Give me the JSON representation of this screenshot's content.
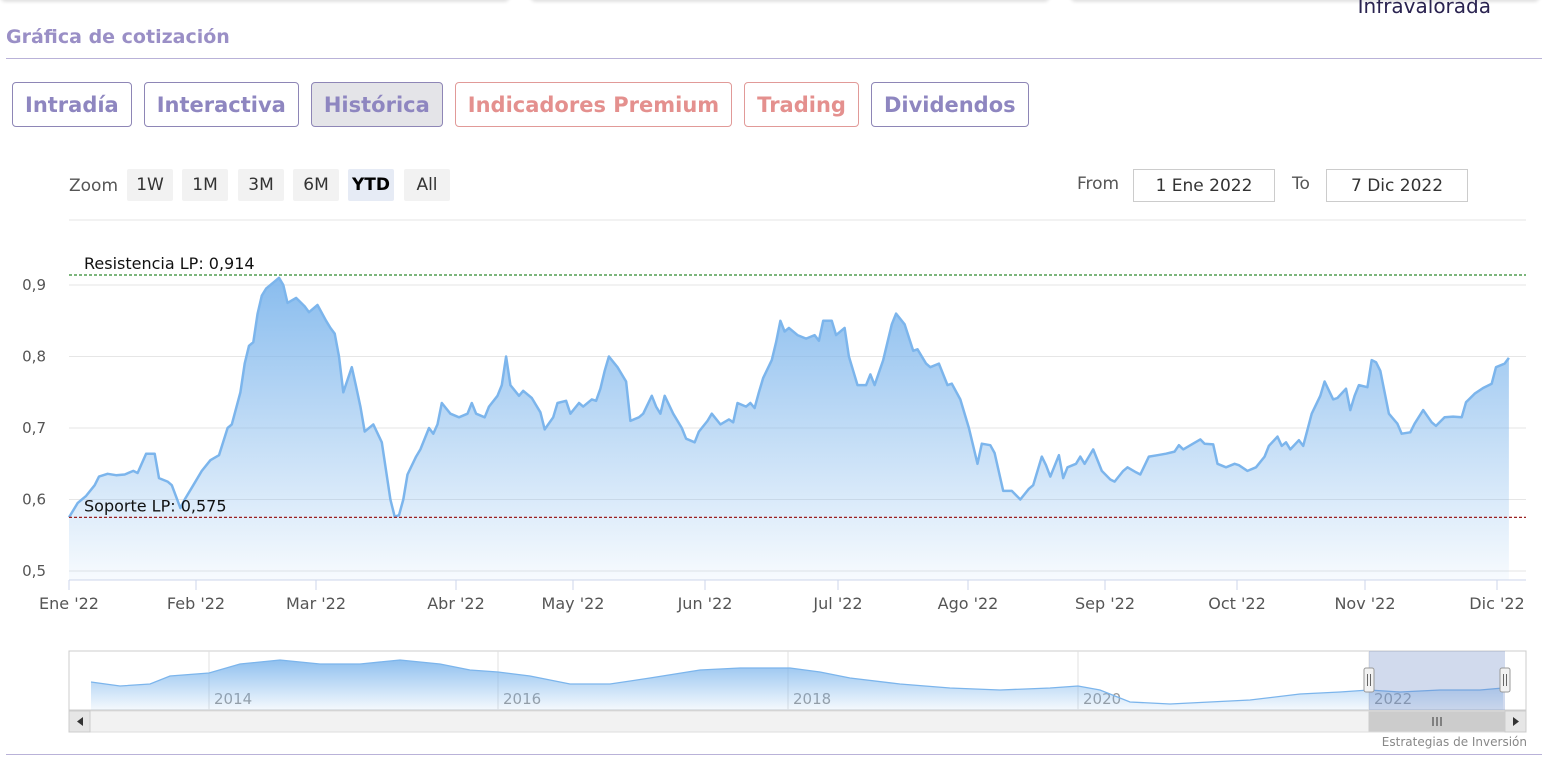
{
  "header": {
    "right_label": "Infravalorada",
    "section_title": "Gráfica de cotización"
  },
  "tabs": [
    {
      "label": "Intradía",
      "active": false,
      "premium": false
    },
    {
      "label": "Interactiva",
      "active": false,
      "premium": false
    },
    {
      "label": "Histórica",
      "active": true,
      "premium": false
    },
    {
      "label": "Indicadores Premium",
      "active": false,
      "premium": true
    },
    {
      "label": "Trading",
      "active": false,
      "premium": true
    },
    {
      "label": "Dividendos",
      "active": false,
      "premium": false
    }
  ],
  "zoom": {
    "label": "Zoom",
    "buttons": [
      "1W",
      "1M",
      "3M",
      "6M",
      "YTD",
      "All"
    ],
    "selected": "YTD"
  },
  "range": {
    "from_label": "From",
    "from_value": "1 Ene 2022",
    "to_label": "To",
    "to_value": "7 Dic 2022"
  },
  "credit": "Estrategias de Inversión",
  "chart_data": {
    "type": "area",
    "title": "",
    "xlabel": "",
    "ylabel": "",
    "x_ticks": [
      "Ene '22",
      "Feb '22",
      "Mar '22",
      "Abr '22",
      "May '22",
      "Jun '22",
      "Jul '22",
      "Ago '22",
      "Sep '22",
      "Oct '22",
      "Nov '22",
      "Dic '22"
    ],
    "y_ticks": [
      "0,5",
      "0,6",
      "0,7",
      "0,8",
      "0,9"
    ],
    "ylim": [
      0.488,
      0.99
    ],
    "xlim": [
      0,
      340
    ],
    "x_unit": "days since 1 Ene 2022",
    "grid": true,
    "color": "#7cb5ec",
    "resistance": {
      "label": "Resistencia LP: 0,914",
      "value": 0.914,
      "color": "#2e8b2e"
    },
    "support": {
      "label": "Soporte LP: 0,575",
      "value": 0.575,
      "color": "#9b2020"
    },
    "series": [
      {
        "name": "",
        "points": [
          [
            0,
            0.575
          ],
          [
            2,
            0.595
          ],
          [
            4,
            0.605
          ],
          [
            6,
            0.62
          ],
          [
            7,
            0.632
          ],
          [
            9,
            0.636
          ],
          [
            11,
            0.634
          ],
          [
            13,
            0.635
          ],
          [
            15,
            0.64
          ],
          [
            16,
            0.637
          ],
          [
            18,
            0.664
          ],
          [
            20,
            0.664
          ],
          [
            21,
            0.63
          ],
          [
            23,
            0.625
          ],
          [
            24,
            0.62
          ],
          [
            26,
            0.588
          ],
          [
            27,
            0.6
          ],
          [
            29,
            0.62
          ],
          [
            31,
            0.64
          ],
          [
            33,
            0.655
          ],
          [
            35,
            0.662
          ],
          [
            37,
            0.7
          ],
          [
            38,
            0.705
          ],
          [
            40,
            0.75
          ],
          [
            41,
            0.79
          ],
          [
            42,
            0.815
          ],
          [
            43,
            0.82
          ],
          [
            44,
            0.86
          ],
          [
            45,
            0.885
          ],
          [
            46,
            0.895
          ],
          [
            48,
            0.905
          ],
          [
            49,
            0.91
          ],
          [
            50,
            0.9
          ],
          [
            51,
            0.875
          ],
          [
            53,
            0.882
          ],
          [
            55,
            0.87
          ],
          [
            56,
            0.862
          ],
          [
            58,
            0.872
          ],
          [
            60,
            0.85
          ],
          [
            61,
            0.84
          ],
          [
            62,
            0.832
          ],
          [
            63,
            0.8
          ],
          [
            64,
            0.75
          ],
          [
            66,
            0.785
          ],
          [
            67,
            0.758
          ],
          [
            68,
            0.73
          ],
          [
            69,
            0.695
          ],
          [
            71,
            0.705
          ],
          [
            73,
            0.68
          ],
          [
            74,
            0.64
          ],
          [
            75,
            0.6
          ],
          [
            76,
            0.576
          ],
          [
            77,
            0.578
          ],
          [
            78,
            0.6
          ],
          [
            79,
            0.635
          ],
          [
            81,
            0.66
          ],
          [
            82,
            0.67
          ],
          [
            84,
            0.7
          ],
          [
            85,
            0.692
          ],
          [
            86,
            0.705
          ],
          [
            87,
            0.735
          ],
          [
            89,
            0.72
          ],
          [
            91,
            0.715
          ],
          [
            93,
            0.72
          ],
          [
            94,
            0.735
          ],
          [
            95,
            0.72
          ],
          [
            97,
            0.715
          ],
          [
            98,
            0.73
          ],
          [
            100,
            0.745
          ],
          [
            101,
            0.76
          ],
          [
            102,
            0.8
          ],
          [
            103,
            0.76
          ],
          [
            105,
            0.745
          ],
          [
            106,
            0.752
          ],
          [
            108,
            0.742
          ],
          [
            110,
            0.722
          ],
          [
            111,
            0.698
          ],
          [
            113,
            0.715
          ],
          [
            114,
            0.735
          ],
          [
            116,
            0.738
          ],
          [
            117,
            0.72
          ],
          [
            119,
            0.735
          ],
          [
            120,
            0.73
          ],
          [
            122,
            0.74
          ],
          [
            123,
            0.738
          ],
          [
            124,
            0.755
          ],
          [
            125,
            0.78
          ],
          [
            126,
            0.8
          ],
          [
            128,
            0.785
          ],
          [
            130,
            0.765
          ],
          [
            131,
            0.71
          ],
          [
            133,
            0.715
          ],
          [
            134,
            0.72
          ],
          [
            136,
            0.745
          ],
          [
            137,
            0.73
          ],
          [
            138,
            0.72
          ],
          [
            139,
            0.745
          ],
          [
            141,
            0.72
          ],
          [
            143,
            0.7
          ],
          [
            144,
            0.685
          ],
          [
            146,
            0.68
          ],
          [
            147,
            0.695
          ],
          [
            149,
            0.71
          ],
          [
            150,
            0.72
          ],
          [
            152,
            0.705
          ],
          [
            154,
            0.712
          ],
          [
            155,
            0.708
          ],
          [
            156,
            0.735
          ],
          [
            158,
            0.73
          ],
          [
            159,
            0.735
          ],
          [
            160,
            0.728
          ],
          [
            161,
            0.75
          ],
          [
            162,
            0.77
          ],
          [
            164,
            0.795
          ],
          [
            165,
            0.82
          ],
          [
            166,
            0.85
          ],
          [
            167,
            0.835
          ],
          [
            168,
            0.84
          ],
          [
            170,
            0.83
          ],
          [
            172,
            0.825
          ],
          [
            174,
            0.83
          ],
          [
            175,
            0.822
          ],
          [
            176,
            0.85
          ],
          [
            178,
            0.85
          ],
          [
            179,
            0.83
          ],
          [
            181,
            0.84
          ],
          [
            182,
            0.8
          ],
          [
            183,
            0.78
          ],
          [
            184,
            0.76
          ],
          [
            186,
            0.76
          ],
          [
            187,
            0.775
          ],
          [
            188,
            0.76
          ],
          [
            190,
            0.795
          ],
          [
            191,
            0.82
          ],
          [
            192,
            0.845
          ],
          [
            193,
            0.86
          ],
          [
            195,
            0.845
          ],
          [
            197,
            0.808
          ],
          [
            198,
            0.81
          ],
          [
            200,
            0.79
          ],
          [
            201,
            0.785
          ],
          [
            203,
            0.79
          ],
          [
            205,
            0.76
          ],
          [
            206,
            0.762
          ],
          [
            208,
            0.74
          ],
          [
            210,
            0.7
          ],
          [
            212,
            0.65
          ],
          [
            213,
            0.678
          ],
          [
            215,
            0.676
          ],
          [
            216,
            0.665
          ],
          [
            218,
            0.612
          ],
          [
            220,
            0.612
          ],
          [
            222,
            0.6
          ],
          [
            224,
            0.615
          ],
          [
            225,
            0.62
          ],
          [
            227,
            0.66
          ],
          [
            228,
            0.648
          ],
          [
            229,
            0.632
          ],
          [
            231,
            0.662
          ],
          [
            232,
            0.63
          ],
          [
            233,
            0.645
          ],
          [
            235,
            0.65
          ],
          [
            236,
            0.66
          ],
          [
            237,
            0.65
          ],
          [
            239,
            0.67
          ],
          [
            241,
            0.64
          ],
          [
            243,
            0.628
          ],
          [
            244,
            0.625
          ],
          [
            246,
            0.64
          ],
          [
            247,
            0.645
          ],
          [
            249,
            0.638
          ],
          [
            250,
            0.635
          ],
          [
            252,
            0.66
          ],
          [
            254,
            0.662
          ],
          [
            256,
            0.664
          ],
          [
            258,
            0.667
          ],
          [
            259,
            0.676
          ],
          [
            260,
            0.67
          ],
          [
            262,
            0.677
          ],
          [
            264,
            0.684
          ],
          [
            265,
            0.678
          ],
          [
            267,
            0.677
          ],
          [
            268,
            0.65
          ],
          [
            270,
            0.645
          ],
          [
            272,
            0.65
          ],
          [
            273,
            0.648
          ],
          [
            275,
            0.64
          ],
          [
            277,
            0.645
          ],
          [
            279,
            0.66
          ],
          [
            280,
            0.675
          ],
          [
            282,
            0.688
          ],
          [
            283,
            0.675
          ],
          [
            284,
            0.68
          ],
          [
            285,
            0.67
          ],
          [
            287,
            0.683
          ],
          [
            288,
            0.675
          ],
          [
            290,
            0.72
          ],
          [
            292,
            0.745
          ],
          [
            293,
            0.765
          ],
          [
            295,
            0.74
          ],
          [
            296,
            0.742
          ],
          [
            298,
            0.755
          ],
          [
            299,
            0.725
          ],
          [
            300,
            0.745
          ],
          [
            301,
            0.76
          ],
          [
            303,
            0.757
          ],
          [
            304,
            0.795
          ],
          [
            305,
            0.792
          ],
          [
            306,
            0.78
          ],
          [
            307,
            0.75
          ],
          [
            308,
            0.72
          ],
          [
            310,
            0.706
          ],
          [
            311,
            0.692
          ],
          [
            313,
            0.694
          ],
          [
            314,
            0.706
          ],
          [
            316,
            0.725
          ],
          [
            318,
            0.708
          ],
          [
            319,
            0.703
          ],
          [
            321,
            0.715
          ],
          [
            323,
            0.716
          ],
          [
            325,
            0.715
          ],
          [
            326,
            0.736
          ],
          [
            328,
            0.748
          ],
          [
            330,
            0.756
          ],
          [
            332,
            0.762
          ],
          [
            333,
            0.785
          ],
          [
            335,
            0.79
          ],
          [
            336,
            0.798
          ]
        ]
      }
    ]
  },
  "navigator": {
    "year_labels": [
      "2014",
      "2016",
      "2018",
      "2020",
      "2022"
    ]
  }
}
